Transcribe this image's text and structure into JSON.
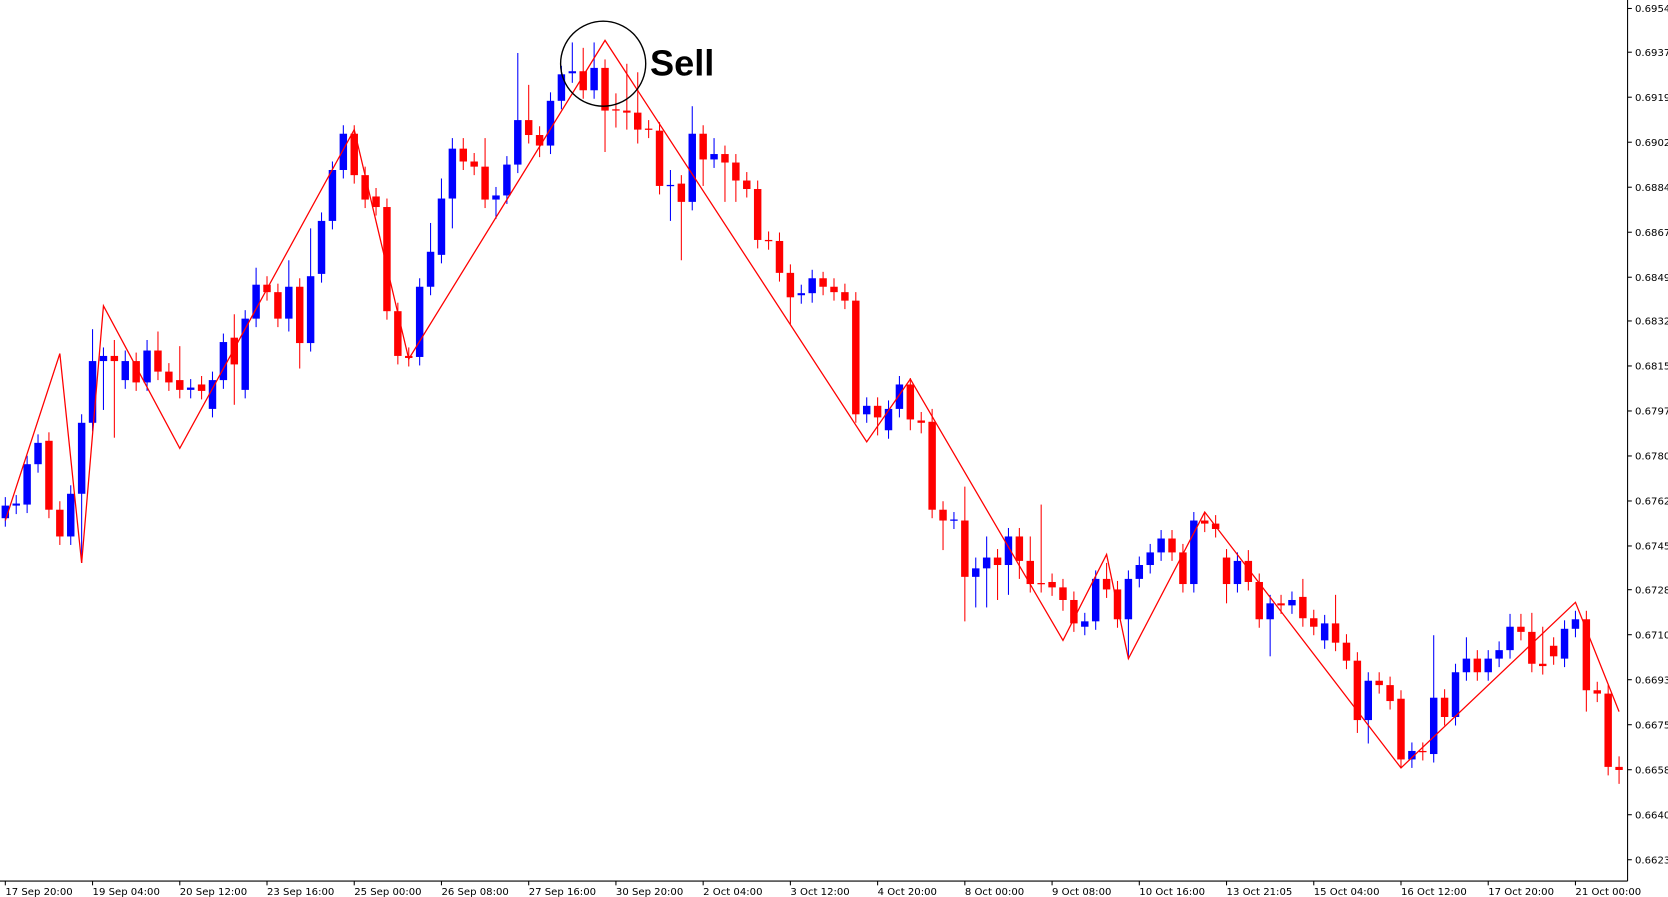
{
  "chart_data": {
    "type": "candlestick",
    "annotation": "Sell",
    "up_color": "#0000ff",
    "down_color": "#ff0000",
    "grid": false,
    "categories": [
      "17 Sep 20:00",
      null,
      null,
      null,
      null,
      null,
      null,
      null,
      "19 Sep 04:00",
      null,
      null,
      null,
      null,
      null,
      null,
      null,
      "20 Sep 12:00",
      null,
      null,
      null,
      null,
      null,
      null,
      null,
      "23 Sep 16:00",
      null,
      null,
      null,
      null,
      null,
      null,
      null,
      "25 Sep 00:00",
      null,
      null,
      null,
      null,
      null,
      null,
      null,
      "26 Sep 08:00",
      null,
      null,
      null,
      null,
      null,
      null,
      null,
      "27 Sep 16:00",
      null,
      null,
      null,
      null,
      null,
      null,
      null,
      "30 Sep 20:00",
      null,
      null,
      null,
      null,
      null,
      null,
      null,
      "2 Oct 04:00",
      null,
      null,
      null,
      null,
      null,
      null,
      null,
      "3 Oct 12:00",
      null,
      null,
      null,
      null,
      null,
      null,
      null,
      "4 Oct 20:00",
      null,
      null,
      null,
      null,
      null,
      null,
      null,
      "8 Oct 00:00",
      null,
      null,
      null,
      null,
      null,
      null,
      null,
      "9 Oct 08:00",
      null,
      null,
      null,
      null,
      null,
      null,
      null,
      "10 Oct 16:00",
      null,
      null,
      null,
      null,
      null,
      null,
      null,
      "13 Oct 21:05",
      null,
      null,
      null,
      null,
      null,
      null,
      null,
      "15 Oct 04:00",
      null,
      null,
      null,
      null,
      null,
      null,
      null,
      "16 Oct 12:00",
      null,
      null,
      null,
      null,
      null,
      null,
      null,
      "17 Oct 20:00",
      null,
      null,
      null,
      null,
      null,
      null,
      null,
      "21 Oct 00:00",
      null,
      null,
      null,
      null
    ],
    "open": [
      0.67558,
      0.67607,
      0.67611,
      0.67768,
      0.67859,
      0.67591,
      0.67487,
      0.67653,
      0.67929,
      0.68169,
      0.68189,
      0.68095,
      0.68169,
      0.68086,
      0.6821,
      0.68128,
      0.68095,
      0.68057,
      0.68078,
      0.67983,
      0.68095,
      0.6826,
      0.68057,
      0.68334,
      0.68466,
      0.68437,
      0.68334,
      0.68458,
      0.68239,
      0.68508,
      0.68714,
      0.68912,
      0.69053,
      0.68892,
      0.68809,
      0.68768,
      0.68363,
      0.68189,
      0.68185,
      0.68458,
      0.68582,
      0.68801,
      0.68995,
      0.68945,
      0.68925,
      0.68797,
      0.68813,
      0.68933,
      0.69106,
      0.69048,
      0.69007,
      0.69181,
      0.69288,
      0.69296,
      0.69222,
      0.69309,
      0.69148,
      0.69143,
      0.69135,
      0.69073,
      0.69065,
      0.6885,
      0.68859,
      0.68788,
      0.69053,
      0.68953,
      0.68974,
      0.68941,
      0.68871,
      0.68838,
      0.6864,
      0.68636,
      0.68512,
      0.68425,
      0.68433,
      0.68491,
      0.68458,
      0.68437,
      0.68404,
      0.67962,
      0.67995,
      0.679,
      0.67983,
      0.68078,
      0.67938,
      0.67933,
      0.67591,
      0.67549,
      0.67549,
      0.6733,
      0.67363,
      0.67405,
      0.67376,
      0.67487,
      0.67392,
      0.67306,
      0.6731,
      0.67289,
      0.6724,
      0.67136,
      0.67157,
      0.67322,
      0.67281,
      0.67165,
      0.67322,
      0.67376,
      0.67425,
      0.67479,
      0.67425,
      0.67302,
      0.67549,
      0.67537,
      0.67405,
      0.67302,
      0.67392,
      0.6731,
      0.67165,
      0.67227,
      0.67219,
      0.67252,
      0.67169,
      0.67083,
      0.67149,
      0.67074,
      0.67004,
      0.66773,
      0.66926,
      0.66909,
      0.66856,
      0.6662,
      0.66653,
      0.66641,
      0.6686,
      0.66785,
      0.66959,
      0.67012,
      0.66959,
      0.67012,
      0.67045,
      0.67136,
      0.67116,
      0.66992,
      0.67062,
      0.67012,
      0.67128,
      0.67165,
      0.66889,
      0.66876,
      0.66591
    ],
    "high": [
      0.6764,
      0.67648,
      0.67801,
      0.67884,
      0.67892,
      0.67624,
      0.67686,
      0.67962,
      0.68293,
      0.68222,
      0.68251,
      0.6821,
      0.68202,
      0.68251,
      0.68284,
      0.68161,
      0.68227,
      0.68099,
      0.68111,
      0.68128,
      0.68276,
      0.68351,
      0.68367,
      0.68532,
      0.68499,
      0.6847,
      0.68561,
      0.68491,
      0.68685,
      0.68747,
      0.68945,
      0.69086,
      0.69086,
      0.68925,
      0.68842,
      0.68801,
      0.68396,
      0.68222,
      0.68491,
      0.68706,
      0.68879,
      0.69036,
      0.69036,
      0.68978,
      0.69036,
      0.68846,
      0.68966,
      0.69367,
      0.69243,
      0.69082,
      0.69214,
      0.69317,
      0.69408,
      0.69387,
      0.69408,
      0.69342,
      0.6921,
      0.69325,
      0.69292,
      0.69106,
      0.69098,
      0.68912,
      0.68892,
      0.6916,
      0.69086,
      0.69036,
      0.69007,
      0.68974,
      0.68904,
      0.68871,
      0.68673,
      0.68669,
      0.68545,
      0.68466,
      0.68524,
      0.68516,
      0.68491,
      0.6847,
      0.68437,
      0.68028,
      0.68028,
      0.68016,
      0.68111,
      0.68103,
      0.67971,
      0.67983,
      0.67624,
      0.67582,
      0.67681,
      0.67405,
      0.67487,
      0.67438,
      0.6752,
      0.6752,
      0.67487,
      0.67611,
      0.67343,
      0.67322,
      0.67273,
      0.6719,
      0.67355,
      0.67384,
      0.67314,
      0.67355,
      0.67409,
      0.67458,
      0.67512,
      0.67512,
      0.67458,
      0.67582,
      0.67582,
      0.6757,
      0.67438,
      0.67425,
      0.67434,
      0.67343,
      0.6726,
      0.6726,
      0.67273,
      0.67322,
      0.67202,
      0.67182,
      0.6726,
      0.67107,
      0.67037,
      0.66959,
      0.66959,
      0.66942,
      0.66889,
      0.66686,
      0.66686,
      0.67103,
      0.66893,
      0.66992,
      0.67095,
      0.67045,
      0.67045,
      0.67079,
      0.67186,
      0.67186,
      0.6719,
      0.67136,
      0.67095,
      0.67161,
      0.67198,
      0.67198,
      0.66922,
      0.66909,
      0.66632
    ],
    "low": [
      0.67525,
      0.67574,
      0.67578,
      0.67735,
      0.67558,
      0.67454,
      0.67454,
      0.67384,
      0.67896,
      0.67979,
      0.67871,
      0.68061,
      0.68053,
      0.68053,
      0.68095,
      0.68053,
      0.68024,
      0.68024,
      0.6802,
      0.6795,
      0.68061,
      0.67999,
      0.68024,
      0.68301,
      0.68404,
      0.68301,
      0.68284,
      0.6814,
      0.68206,
      0.68474,
      0.68681,
      0.68879,
      0.68859,
      0.68764,
      0.68735,
      0.6833,
      0.68156,
      0.68148,
      0.68152,
      0.68425,
      0.68549,
      0.68685,
      0.68912,
      0.68892,
      0.68764,
      0.68722,
      0.6878,
      0.689,
      0.69015,
      0.68962,
      0.68974,
      0.69148,
      0.69251,
      0.69189,
      0.69189,
      0.68982,
      0.69077,
      0.69069,
      0.69015,
      0.69036,
      0.68817,
      0.68714,
      0.68561,
      0.68755,
      0.6885,
      0.6892,
      0.68788,
      0.68788,
      0.68805,
      0.68607,
      0.68602,
      0.68478,
      0.68313,
      0.68392,
      0.68396,
      0.68425,
      0.68404,
      0.68371,
      0.67929,
      0.67929,
      0.6788,
      0.67867,
      0.6795,
      0.679,
      0.67888,
      0.67558,
      0.67434,
      0.67516,
      0.67157,
      0.67211,
      0.67211,
      0.6724,
      0.6726,
      0.67322,
      0.67269,
      0.67269,
      0.67256,
      0.67198,
      0.67116,
      0.67103,
      0.67124,
      0.67248,
      0.67132,
      0.67012,
      0.67289,
      0.67343,
      0.67392,
      0.67392,
      0.67269,
      0.67269,
      0.67504,
      0.67483,
      0.67227,
      0.67269,
      0.67277,
      0.67132,
      0.67021,
      0.67186,
      0.67186,
      0.67136,
      0.67103,
      0.6705,
      0.67041,
      0.66971,
      0.66723,
      0.66682,
      0.66876,
      0.66814,
      0.66587,
      0.66587,
      0.66616,
      0.66608,
      0.66752,
      0.66752,
      0.66926,
      0.66926,
      0.66926,
      0.66979,
      0.67012,
      0.67083,
      0.66959,
      0.6695,
      0.66988,
      0.66979,
      0.67095,
      0.66806,
      0.66843,
      0.66558,
      0.66525
    ],
    "close": [
      0.67607,
      0.67615,
      0.67768,
      0.67851,
      0.67591,
      0.67487,
      0.67653,
      0.67929,
      0.68169,
      0.68189,
      0.68169,
      0.68169,
      0.68086,
      0.6821,
      0.68128,
      0.68086,
      0.68057,
      0.68066,
      0.68053,
      0.68095,
      0.68243,
      0.68156,
      0.68334,
      0.68466,
      0.68437,
      0.68334,
      0.68458,
      0.68239,
      0.68499,
      0.68714,
      0.68912,
      0.69053,
      0.68892,
      0.68797,
      0.68768,
      0.68363,
      0.68189,
      0.68181,
      0.68458,
      0.68594,
      0.68801,
      0.68995,
      0.68945,
      0.68925,
      0.68797,
      0.68813,
      0.68933,
      0.69106,
      0.69048,
      0.69007,
      0.69181,
      0.69284,
      0.69296,
      0.69222,
      0.69309,
      0.69143,
      0.69143,
      0.69135,
      0.69069,
      0.69069,
      0.6885,
      0.68854,
      0.68788,
      0.69053,
      0.68953,
      0.68974,
      0.68941,
      0.68871,
      0.68838,
      0.6864,
      0.68636,
      0.68512,
      0.68417,
      0.68433,
      0.68491,
      0.68458,
      0.68437,
      0.68404,
      0.67962,
      0.67995,
      0.6795,
      0.67983,
      0.68078,
      0.67942,
      0.67929,
      0.67591,
      0.67549,
      0.67553,
      0.6733,
      0.67363,
      0.67405,
      0.67376,
      0.67487,
      0.67392,
      0.67302,
      0.67302,
      0.67289,
      0.6724,
      0.67149,
      0.67157,
      0.67322,
      0.67281,
      0.67165,
      0.67322,
      0.67376,
      0.67425,
      0.67479,
      0.67425,
      0.67302,
      0.67549,
      0.67537,
      0.67516,
      0.67302,
      0.67392,
      0.6731,
      0.67165,
      0.67227,
      0.67219,
      0.6724,
      0.67169,
      0.67136,
      0.67149,
      0.67074,
      0.67004,
      0.66773,
      0.66926,
      0.66909,
      0.66847,
      0.6662,
      0.66653,
      0.66649,
      0.6686,
      0.66785,
      0.66959,
      0.67012,
      0.66959,
      0.67012,
      0.67045,
      0.67136,
      0.67116,
      0.66992,
      0.66983,
      0.67021,
      0.67128,
      0.67165,
      0.66889,
      0.66876,
      0.66591,
      0.66579
    ],
    "zigzag": {
      "color": "#ff0000",
      "x": [
        0,
        5,
        7,
        9,
        16,
        32,
        37,
        55,
        79,
        83,
        97,
        101,
        103,
        110,
        128,
        144,
        148
      ],
      "values": [
        0.67549,
        0.68198,
        0.67384,
        0.68384,
        0.6783,
        0.69069,
        0.68177,
        0.69416,
        0.67855,
        0.68099,
        0.67083,
        0.67417,
        0.67012,
        0.67582,
        0.66587,
        0.67231,
        0.66806
      ]
    },
    "ylim": [
      0.66147,
      0.69573
    ],
    "yticks": [
      {
        "value": 0.6623,
        "label": "0.66230"
      },
      {
        "value": 0.66405,
        "label": "0.66405"
      },
      {
        "value": 0.6658,
        "label": "0.66580"
      },
      {
        "value": 0.66755,
        "label": "0.66755"
      },
      {
        "value": 0.6693,
        "label": "0.66930"
      },
      {
        "value": 0.67105,
        "label": "0.67105"
      },
      {
        "value": 0.6728,
        "label": "0.67280"
      },
      {
        "value": 0.6745,
        "label": "0.67450"
      },
      {
        "value": 0.67625,
        "label": "0.67625"
      },
      {
        "value": 0.678,
        "label": "0.67800"
      },
      {
        "value": 0.67975,
        "label": "0.67975"
      },
      {
        "value": 0.6815,
        "label": "0.68150"
      },
      {
        "value": 0.68325,
        "label": "0.68325"
      },
      {
        "value": 0.68495,
        "label": "0.68495"
      },
      {
        "value": 0.6867,
        "label": "0.68670"
      },
      {
        "value": 0.68845,
        "label": "0.68845"
      },
      {
        "value": 0.6902,
        "label": "0.69020"
      },
      {
        "value": 0.69195,
        "label": "0.69195"
      },
      {
        "value": 0.6937,
        "label": "0.69370"
      },
      {
        "value": 0.6954,
        "label": "0.69540"
      }
    ]
  }
}
